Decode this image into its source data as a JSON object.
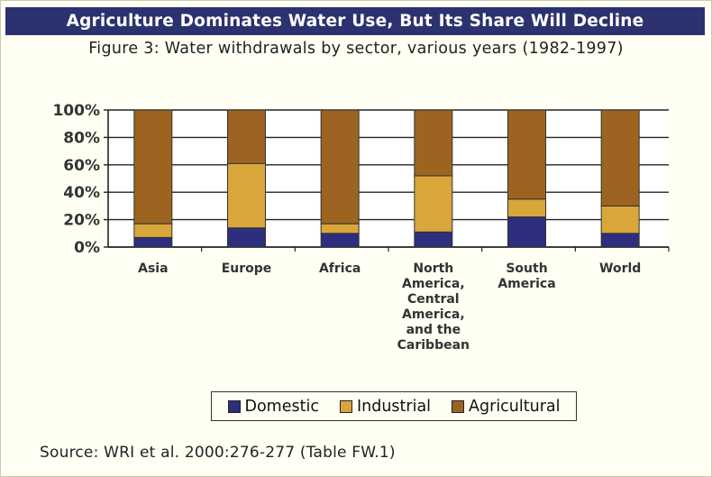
{
  "header": {
    "title": "Agriculture Dominates Water Use, But Its Share Will Decline",
    "subtitle": "Figure 3: Water withdrawals by sector, various years (1982-1997)"
  },
  "footer": {
    "source": "Source: WRI et al. 2000:276-277 (Table FW.1)"
  },
  "colors": {
    "domestic": "#2e2e7e",
    "industrial": "#d9a63c",
    "agricultural": "#9c6420"
  },
  "chart_data": {
    "type": "bar",
    "stacked": true,
    "categories": [
      [
        "Asia"
      ],
      [
        "Europe"
      ],
      [
        "Africa"
      ],
      [
        "North",
        "America,",
        "Central",
        "America,",
        "and the",
        "Caribbean"
      ],
      [
        "South",
        "America"
      ],
      [
        "World"
      ]
    ],
    "series": [
      {
        "name": "Domestic",
        "values": [
          7,
          14,
          10,
          11,
          22,
          10
        ]
      },
      {
        "name": "Industrial",
        "values": [
          10,
          47,
          7,
          41,
          13,
          20
        ]
      },
      {
        "name": "Agricultural",
        "values": [
          83,
          39,
          83,
          48,
          65,
          70
        ]
      }
    ],
    "ylim": [
      0,
      100
    ],
    "yticks": [
      "0%",
      "20%",
      "40%",
      "60%",
      "80%",
      "100%"
    ],
    "grid": true,
    "legend_position": "bottom"
  }
}
